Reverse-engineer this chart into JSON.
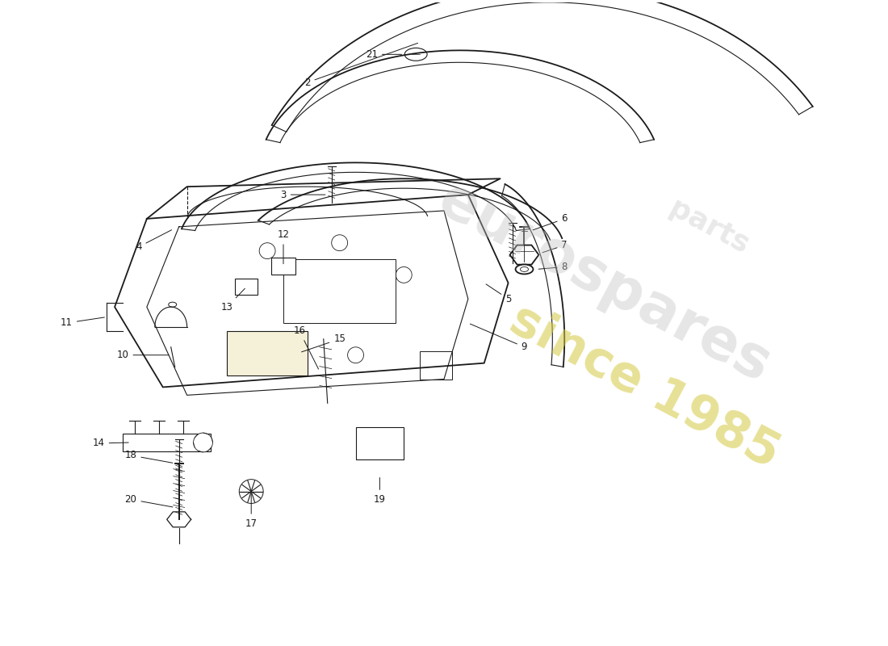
{
  "background_color": "#ffffff",
  "line_color": "#1a1a1a",
  "watermark1": "eurospares",
  "watermark2": "since 1985",
  "watermark1_color": "#c0c0c0",
  "watermark2_color": "#d4c840",
  "figsize": [
    11.0,
    8.0
  ],
  "dpi": 100
}
